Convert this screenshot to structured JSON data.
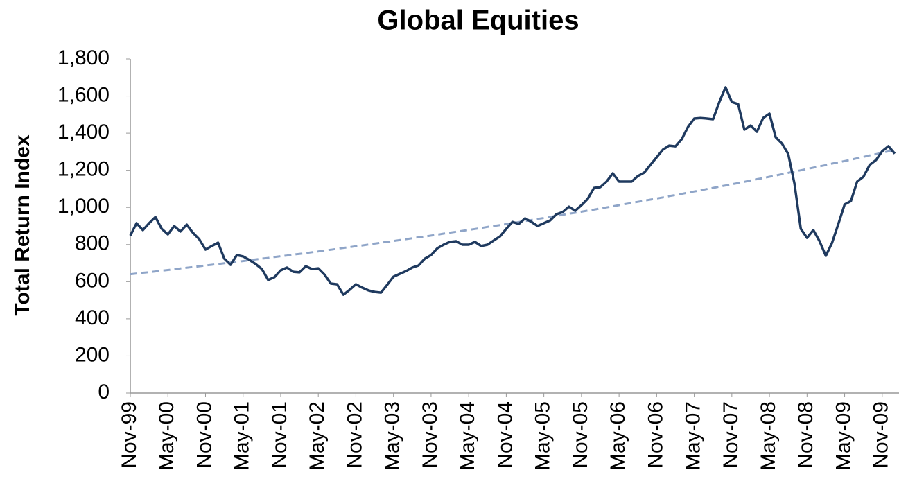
{
  "chart_data": {
    "type": "line",
    "title": "Global Equities",
    "y_label": "Total Return Index",
    "categories": [
      "Nov-99",
      null,
      null,
      null,
      null,
      null,
      "May-00",
      null,
      null,
      null,
      null,
      null,
      "Nov-00",
      null,
      null,
      null,
      null,
      null,
      "May-01",
      null,
      null,
      null,
      null,
      null,
      "Nov-01",
      null,
      null,
      null,
      null,
      null,
      "May-02",
      null,
      null,
      null,
      null,
      null,
      "Nov-02",
      null,
      null,
      null,
      null,
      null,
      "May-03",
      null,
      null,
      null,
      null,
      null,
      "Nov-03",
      null,
      null,
      null,
      null,
      null,
      "May-04",
      null,
      null,
      null,
      null,
      null,
      "Nov-04",
      null,
      null,
      null,
      null,
      null,
      "May-05",
      null,
      null,
      null,
      null,
      null,
      "Nov-05",
      null,
      null,
      null,
      null,
      null,
      "May-06",
      null,
      null,
      null,
      null,
      null,
      "Nov-06",
      null,
      null,
      null,
      null,
      null,
      "May-07",
      null,
      null,
      null,
      null,
      null,
      "Nov-07",
      null,
      null,
      null,
      null,
      null,
      "May-08",
      null,
      null,
      null,
      null,
      null,
      "Nov-08",
      null,
      null,
      null,
      null,
      null,
      "May-09",
      null,
      null,
      null,
      null,
      null,
      "Nov-09",
      null,
      null
    ],
    "series": [
      {
        "color": "#1f3a5f",
        "style": "solid",
        "values": [
          848,
          915,
          878,
          915,
          948,
          885,
          855,
          900,
          870,
          907,
          863,
          829,
          773,
          792,
          810,
          724,
          691,
          743,
          736,
          717,
          695,
          668,
          609,
          624,
          661,
          676,
          653,
          650,
          683,
          668,
          672,
          638,
          590,
          586,
          530,
          556,
          586,
          568,
          553,
          545,
          541,
          583,
          627,
          642,
          657,
          676,
          687,
          724,
          743,
          780,
          799,
          814,
          818,
          799,
          799,
          814,
          792,
          799,
          822,
          844,
          885,
          922,
          911,
          941,
          922,
          900,
          915,
          930,
          963,
          975,
          1004,
          982,
          1012,
          1046,
          1105,
          1109,
          1139,
          1184,
          1139,
          1139,
          1139,
          1169,
          1187,
          1229,
          1270,
          1311,
          1333,
          1329,
          1367,
          1434,
          1479,
          1482,
          1479,
          1475,
          1568,
          1647,
          1568,
          1557,
          1419,
          1441,
          1408,
          1482,
          1505,
          1378,
          1344,
          1288,
          1128,
          885,
          836,
          878,
          818,
          739,
          810,
          911,
          1016,
          1034,
          1139,
          1165,
          1229,
          1255,
          1303,
          1330,
          1290
        ]
      },
      {
        "color": "#8fa5c8",
        "style": "dashed",
        "values": [
          640,
          644,
          648,
          651,
          655,
          659,
          663,
          667,
          671,
          675,
          679,
          683,
          687,
          691,
          695,
          699,
          703,
          707,
          711,
          716,
          720,
          724,
          728,
          733,
          737,
          741,
          746,
          750,
          754,
          759,
          763,
          768,
          772,
          777,
          782,
          786,
          791,
          795,
          800,
          805,
          810,
          814,
          819,
          824,
          829,
          834,
          839,
          843,
          848,
          853,
          859,
          864,
          869,
          874,
          879,
          884,
          889,
          895,
          900,
          905,
          910,
          916,
          921,
          927,
          932,
          938,
          943,
          949,
          954,
          960,
          966,
          971,
          977,
          983,
          988,
          994,
          1000,
          1006,
          1012,
          1018,
          1024,
          1030,
          1036,
          1042,
          1048,
          1054,
          1061,
          1067,
          1073,
          1080,
          1086,
          1092,
          1099,
          1105,
          1112,
          1118,
          1125,
          1131,
          1138,
          1145,
          1152,
          1158,
          1165,
          1172,
          1179,
          1186,
          1193,
          1200,
          1207,
          1214,
          1221,
          1228,
          1236,
          1243,
          1250,
          1257,
          1265,
          1272,
          1280,
          1287,
          1295,
          1302,
          1310
        ]
      }
    ],
    "ylim": [
      0,
      1800
    ],
    "yticks": [
      0,
      200,
      400,
      600,
      800,
      {
        "value": 1000,
        "label": "1,000"
      },
      {
        "value": 1200,
        "label": "1,200"
      },
      {
        "value": 1400,
        "label": "1,400"
      },
      {
        "value": 1600,
        "label": "1,600"
      },
      {
        "value": 1800,
        "label": "1,800"
      }
    ],
    "grid": false
  }
}
